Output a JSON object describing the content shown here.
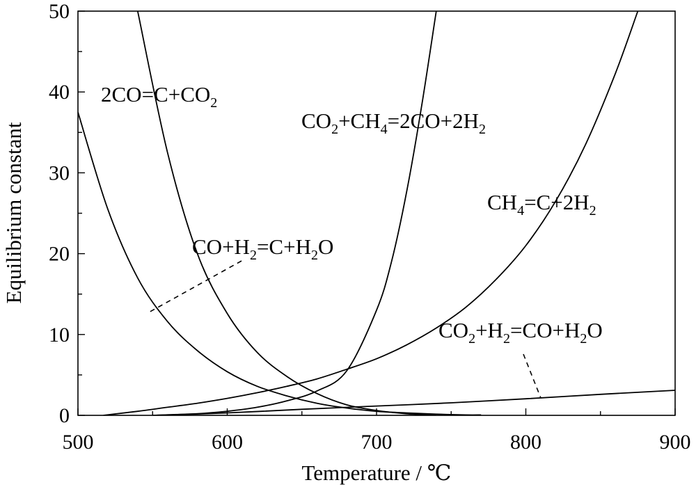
{
  "chart_data": {
    "type": "line",
    "title": "",
    "xlabel": "Temperature / ℃",
    "ylabel": "Equilibrium constant",
    "xlim": [
      500,
      900
    ],
    "ylim": [
      0,
      50
    ],
    "x_ticks": [
      "500",
      "600",
      "700",
      "800",
      "900"
    ],
    "y_ticks": [
      "0",
      "10",
      "20",
      "30",
      "40",
      "50"
    ],
    "grid": false,
    "legend": "none",
    "series": [
      {
        "name": "2CO=C+CO2",
        "x": [
          540,
          560,
          580,
          600,
          620,
          640,
          660,
          680,
          700,
          720,
          740
        ],
        "y": [
          50,
          32.5,
          20.0,
          12.6,
          7.8,
          4.8,
          2.7,
          1.3,
          0.6,
          0.2,
          0.0
        ]
      },
      {
        "name": "CO+H2=C+H2O",
        "x": [
          500,
          520,
          540,
          560,
          580,
          600,
          620,
          640,
          660,
          680,
          700,
          720,
          740,
          760,
          770
        ],
        "y": [
          37.5,
          25.5,
          17.0,
          11.6,
          8.0,
          5.4,
          3.6,
          2.4,
          1.5,
          0.9,
          0.5,
          0.3,
          0.15,
          0.05,
          0.05
        ]
      },
      {
        "name": "CO2+CH4=2CO+2H2",
        "x": [
          550,
          580,
          600,
          620,
          640,
          660,
          680,
          700,
          710,
          720,
          730,
          740
        ],
        "y": [
          0.0,
          0.2,
          0.5,
          1.0,
          1.8,
          3.0,
          5.5,
          13.0,
          19.0,
          27.5,
          38.0,
          50.0
        ]
      },
      {
        "name": "CH4=C+2H2",
        "x": [
          517,
          540,
          560,
          580,
          600,
          620,
          640,
          660,
          680,
          700,
          720,
          740,
          760,
          780,
          800,
          820,
          840,
          860,
          875
        ],
        "y": [
          0.0,
          0.5,
          1.0,
          1.5,
          2.1,
          2.8,
          3.6,
          4.5,
          5.7,
          7.0,
          8.7,
          10.8,
          13.4,
          16.8,
          21.0,
          26.5,
          33.5,
          42.3,
          50.0
        ]
      },
      {
        "name": "CO2+H2=CO+H2O",
        "x": [
          550,
          600,
          650,
          700,
          750,
          800,
          850,
          900
        ],
        "y": [
          0.0,
          0.3,
          0.75,
          1.15,
          1.55,
          2.05,
          2.6,
          3.1
        ]
      }
    ],
    "annotations": [
      {
        "base": [
          "2CO=C+CO",
          ""
        ],
        "sub": [
          "2",
          ""
        ],
        "full": "2CO=C+CO2"
      },
      {
        "base": [
          "CO",
          "+CH",
          "=2CO+2H",
          ""
        ],
        "sub": [
          "2",
          "4",
          "2",
          ""
        ],
        "full": "CO2+CH4=2CO+2H2"
      },
      {
        "base": [
          "CH",
          "=C+2H",
          ""
        ],
        "sub": [
          "4",
          "2",
          ""
        ],
        "full": "CH4=C+2H2"
      },
      {
        "base": [
          "CO+H",
          "=C+H",
          "O"
        ],
        "sub": [
          "2",
          "2",
          ""
        ],
        "full": "CO+H2=C+H2O"
      },
      {
        "base": [
          "CO",
          "+H",
          "=CO+H",
          "O"
        ],
        "sub": [
          "2",
          "2",
          "2",
          ""
        ],
        "full": "CO2+H2=CO+H2O"
      }
    ]
  }
}
